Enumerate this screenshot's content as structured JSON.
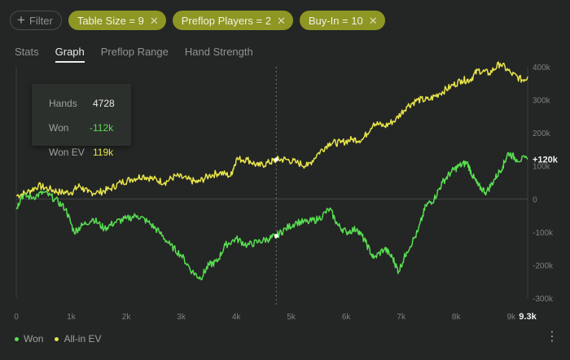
{
  "filter": {
    "label": "Filter",
    "chips": [
      {
        "label": "Table Size = 9"
      },
      {
        "label": "Preflop Players = 2"
      },
      {
        "label": "Buy-In = 10"
      }
    ]
  },
  "tabs": [
    {
      "label": "Stats",
      "active": false
    },
    {
      "label": "Graph",
      "active": true
    },
    {
      "label": "Preflop Range",
      "active": false
    },
    {
      "label": "Hand Strength",
      "active": false
    }
  ],
  "tooltip": {
    "hands_label": "Hands",
    "hands_value": "4728",
    "won_label": "Won",
    "won_value": "-112k",
    "wonev_label": "Won EV",
    "wonev_value": "119k"
  },
  "legend": {
    "won": "Won",
    "allin": "All-in EV"
  },
  "colors": {
    "won": "#59dd52",
    "allin": "#e8e44a",
    "chip": "#8e9624",
    "background": "#232624"
  },
  "chart_data": {
    "type": "line",
    "x_ticks": [
      "0",
      "1k",
      "2k",
      "3k",
      "4k",
      "5k",
      "6k",
      "7k",
      "8k",
      "9k"
    ],
    "x_end_label": "9.3k",
    "y_ticks": [
      "400k",
      "300k",
      "200k",
      "100k",
      "0",
      "-100k",
      "-200k",
      "-300k"
    ],
    "last_value_label": "+120k",
    "xlim": [
      0,
      9300
    ],
    "ylim": [
      -300000,
      400000
    ],
    "cursor_x": 4728,
    "series": [
      {
        "name": "Won",
        "color": "#59dd52",
        "points": [
          [
            0,
            -30000
          ],
          [
            100,
            10000
          ],
          [
            300,
            5000
          ],
          [
            500,
            20000
          ],
          [
            700,
            0
          ],
          [
            900,
            -30000
          ],
          [
            1050,
            -100000
          ],
          [
            1200,
            -80000
          ],
          [
            1400,
            -60000
          ],
          [
            1600,
            -90000
          ],
          [
            1800,
            -70000
          ],
          [
            2000,
            -60000
          ],
          [
            2200,
            -50000
          ],
          [
            2400,
            -70000
          ],
          [
            2600,
            -100000
          ],
          [
            2800,
            -140000
          ],
          [
            3000,
            -170000
          ],
          [
            3200,
            -220000
          ],
          [
            3350,
            -240000
          ],
          [
            3500,
            -200000
          ],
          [
            3650,
            -190000
          ],
          [
            3800,
            -140000
          ],
          [
            4000,
            -120000
          ],
          [
            4200,
            -140000
          ],
          [
            4400,
            -130000
          ],
          [
            4600,
            -120000
          ],
          [
            4728,
            -112000
          ],
          [
            4900,
            -90000
          ],
          [
            5100,
            -70000
          ],
          [
            5300,
            -70000
          ],
          [
            5500,
            -60000
          ],
          [
            5700,
            -30000
          ],
          [
            5850,
            -80000
          ],
          [
            6000,
            -100000
          ],
          [
            6200,
            -90000
          ],
          [
            6350,
            -130000
          ],
          [
            6500,
            -180000
          ],
          [
            6700,
            -150000
          ],
          [
            6850,
            -180000
          ],
          [
            6950,
            -220000
          ],
          [
            7100,
            -160000
          ],
          [
            7300,
            -100000
          ],
          [
            7450,
            -20000
          ],
          [
            7600,
            0
          ],
          [
            7750,
            50000
          ],
          [
            7900,
            80000
          ],
          [
            8050,
            100000
          ],
          [
            8200,
            110000
          ],
          [
            8300,
            70000
          ],
          [
            8400,
            40000
          ],
          [
            8550,
            20000
          ],
          [
            8700,
            60000
          ],
          [
            8850,
            100000
          ],
          [
            8950,
            140000
          ],
          [
            9100,
            120000
          ],
          [
            9300,
            120000
          ]
        ]
      },
      {
        "name": "All-in EV",
        "color": "#e8e44a",
        "points": [
          [
            0,
            10000
          ],
          [
            200,
            20000
          ],
          [
            400,
            40000
          ],
          [
            600,
            30000
          ],
          [
            800,
            20000
          ],
          [
            1000,
            20000
          ],
          [
            1150,
            40000
          ],
          [
            1300,
            20000
          ],
          [
            1500,
            20000
          ],
          [
            1700,
            30000
          ],
          [
            1900,
            50000
          ],
          [
            2100,
            60000
          ],
          [
            2300,
            70000
          ],
          [
            2500,
            60000
          ],
          [
            2700,
            50000
          ],
          [
            2900,
            70000
          ],
          [
            3100,
            60000
          ],
          [
            3300,
            50000
          ],
          [
            3500,
            70000
          ],
          [
            3700,
            80000
          ],
          [
            3900,
            70000
          ],
          [
            4000,
            120000
          ],
          [
            4200,
            120000
          ],
          [
            4400,
            100000
          ],
          [
            4600,
            110000
          ],
          [
            4728,
            119000
          ],
          [
            4900,
            120000
          ],
          [
            5100,
            110000
          ],
          [
            5300,
            100000
          ],
          [
            5500,
            140000
          ],
          [
            5700,
            170000
          ],
          [
            5900,
            170000
          ],
          [
            6100,
            180000
          ],
          [
            6300,
            180000
          ],
          [
            6500,
            230000
          ],
          [
            6700,
            220000
          ],
          [
            6900,
            240000
          ],
          [
            7100,
            280000
          ],
          [
            7300,
            300000
          ],
          [
            7500,
            300000
          ],
          [
            7700,
            320000
          ],
          [
            7900,
            340000
          ],
          [
            8100,
            360000
          ],
          [
            8250,
            360000
          ],
          [
            8400,
            390000
          ],
          [
            8600,
            380000
          ],
          [
            8800,
            410000
          ],
          [
            9000,
            380000
          ],
          [
            9200,
            360000
          ],
          [
            9300,
            370000
          ]
        ]
      }
    ]
  }
}
